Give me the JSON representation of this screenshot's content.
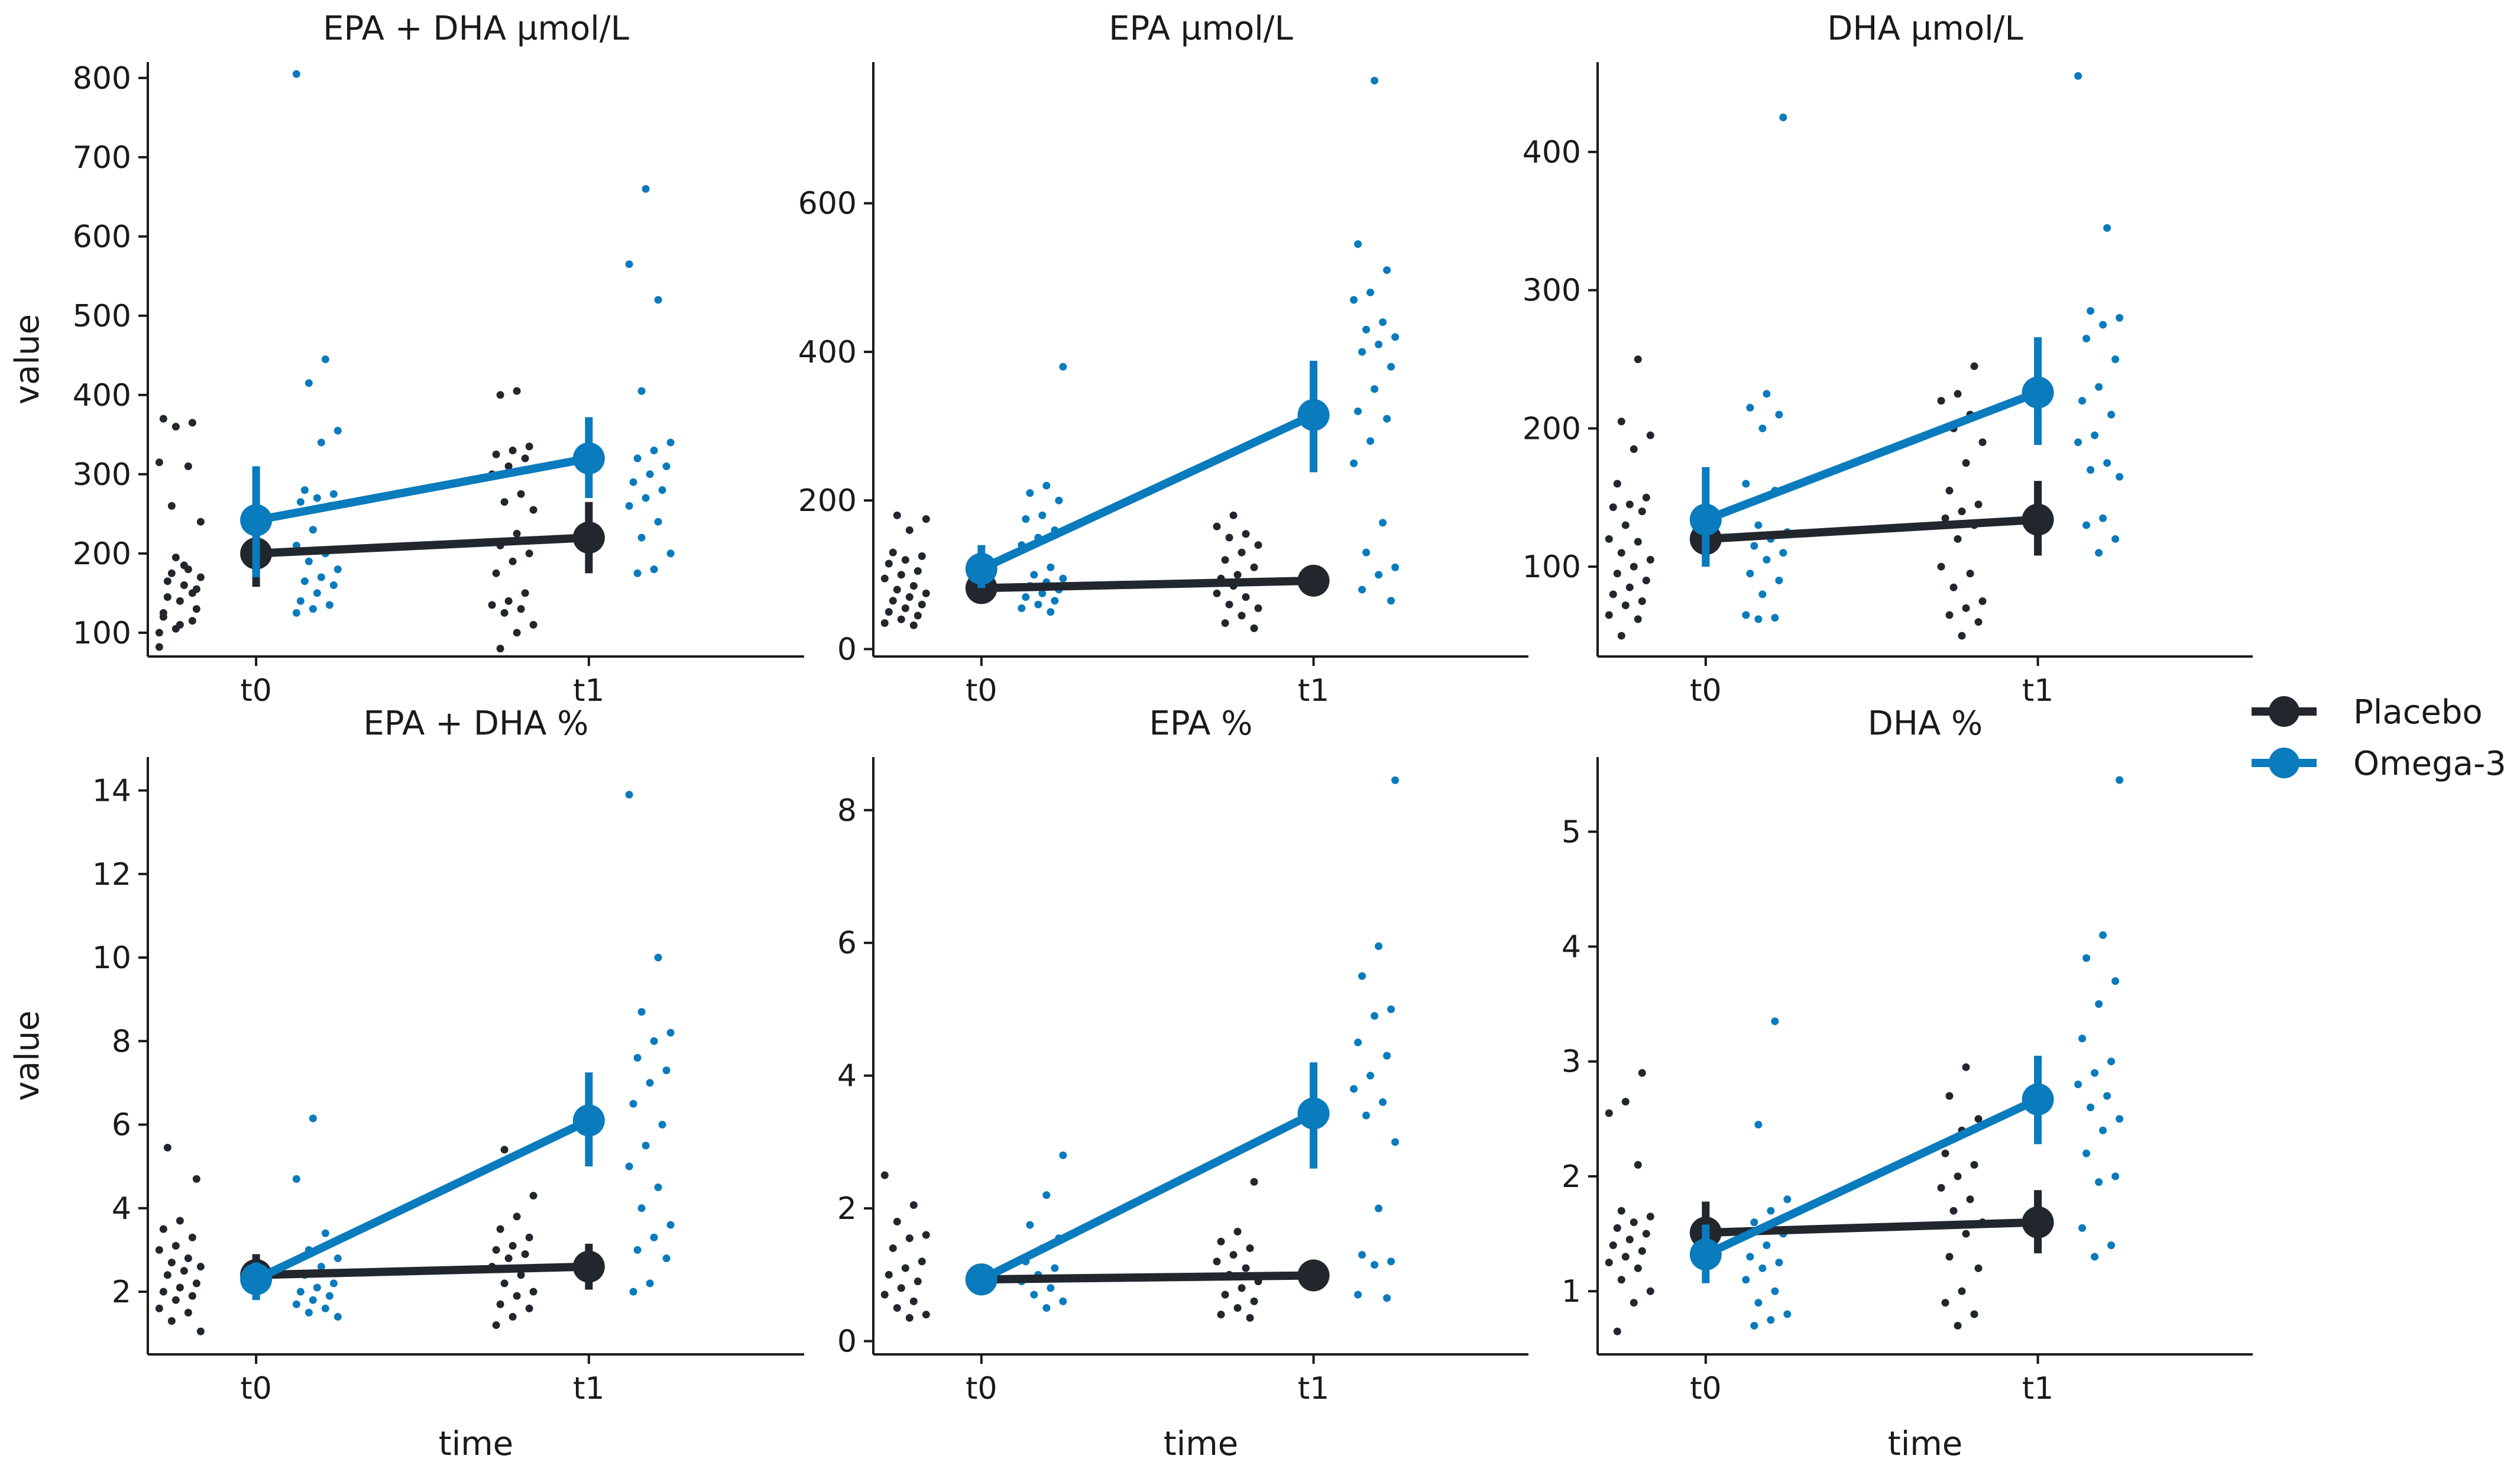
{
  "colors": {
    "placebo": "#22272e",
    "omega3": "#0a7bbd"
  },
  "legend": {
    "position": "right",
    "items": [
      {
        "label": "Placebo",
        "color": "#22272e"
      },
      {
        "label": "Omega-3",
        "color": "#0a7bbd"
      }
    ]
  },
  "chart_data": [
    {
      "type": "scatter",
      "title": "EPA + DHA µmol/L",
      "xlabel": "",
      "ylabel": "value",
      "categories": [
        "t0",
        "t1"
      ],
      "ylim": [
        70,
        820
      ],
      "yticks": [
        100,
        200,
        300,
        400,
        500,
        600,
        700,
        800
      ],
      "series": [
        {
          "name": "Placebo",
          "means": [
            200,
            220
          ],
          "ci": [
            [
              158,
              242
            ],
            [
              175,
              265
            ]
          ],
          "points": [
            [
              82,
              195,
              150,
              120,
              110,
              130,
              145,
              160,
              170,
              175,
              180,
              100,
              105,
              115,
              125,
              140,
              155,
              165,
              185,
              240,
              260,
              310,
              315,
              360,
              365,
              370
            ],
            [
              80,
              100,
              110,
              125,
              130,
              135,
              140,
              150,
              175,
              190,
              200,
              210,
              225,
              255,
              265,
              275,
              300,
              310,
              320,
              325,
              330,
              335,
              400,
              405
            ]
          ]
        },
        {
          "name": "Omega-3",
          "means": [
            242,
            320
          ],
          "ci": [
            [
              170,
              310
            ],
            [
              270,
              372
            ]
          ],
          "points": [
            [
              125,
              130,
              135,
              140,
              150,
              160,
              165,
              170,
              180,
              190,
              200,
              210,
              230,
              260,
              265,
              270,
              275,
              280,
              340,
              355,
              415,
              445,
              805
            ],
            [
              175,
              180,
              200,
              220,
              240,
              260,
              270,
              280,
              290,
              300,
              310,
              320,
              330,
              340,
              405,
              520,
              565,
              660
            ]
          ]
        }
      ]
    },
    {
      "type": "scatter",
      "title": "EPA µmol/L",
      "xlabel": "",
      "ylabel": "",
      "categories": [
        "t0",
        "t1"
      ],
      "ylim": [
        -10,
        790
      ],
      "yticks": [
        0,
        200,
        400,
        600
      ],
      "series": [
        {
          "name": "Placebo",
          "means": [
            82,
            92
          ],
          "ci": [
            [
              65,
              100
            ],
            [
              75,
              112
            ]
          ],
          "points": [
            [
              32,
              35,
              40,
              45,
              50,
              55,
              60,
              65,
              70,
              75,
              80,
              85,
              95,
              100,
              105,
              115,
              120,
              125,
              130,
              160,
              175,
              180
            ],
            [
              28,
              35,
              45,
              55,
              60,
              70,
              75,
              85,
              90,
              95,
              100,
              110,
              120,
              130,
              140,
              150,
              155,
              165,
              180
            ]
          ]
        },
        {
          "name": "Omega-3",
          "means": [
            108,
            315
          ],
          "ci": [
            [
              82,
              140
            ],
            [
              238,
              388
            ]
          ],
          "points": [
            [
              50,
              55,
              60,
              65,
              70,
              75,
              80,
              85,
              90,
              95,
              100,
              110,
              140,
              150,
              160,
              175,
              180,
              200,
              210,
              220,
              380
            ],
            [
              65,
              80,
              100,
              110,
              130,
              170,
              250,
              280,
              310,
              320,
              350,
              380,
              400,
              410,
              420,
              430,
              440,
              470,
              480,
              510,
              545,
              765
            ]
          ]
        }
      ]
    },
    {
      "type": "scatter",
      "title": "DHA µmol/L",
      "xlabel": "",
      "ylabel": "",
      "categories": [
        "t0",
        "t1"
      ],
      "ylim": [
        35,
        465
      ],
      "yticks": [
        100,
        200,
        300,
        400
      ],
      "series": [
        {
          "name": "Placebo",
          "means": [
            120,
            134
          ],
          "ci": [
            [
              100,
              140
            ],
            [
              108,
              162
            ]
          ],
          "points": [
            [
              50,
              62,
              65,
              72,
              75,
              80,
              85,
              90,
              95,
              100,
              105,
              110,
              118,
              120,
              130,
              140,
              143,
              145,
              150,
              160,
              185,
              195,
              205,
              250
            ],
            [
              50,
              60,
              65,
              70,
              75,
              85,
              95,
              100,
              120,
              130,
              135,
              140,
              145,
              155,
              175,
              190,
              200,
              210,
              220,
              225,
              245
            ]
          ]
        },
        {
          "name": "Omega-3",
          "means": [
            134,
            226
          ],
          "ci": [
            [
              100,
              172
            ],
            [
              188,
              266
            ]
          ],
          "points": [
            [
              62,
              63,
              65,
              80,
              90,
              95,
              105,
              110,
              115,
              120,
              125,
              130,
              155,
              160,
              200,
              210,
              215,
              225,
              425
            ],
            [
              110,
              120,
              130,
              135,
              165,
              170,
              175,
              190,
              195,
              210,
              220,
              230,
              250,
              265,
              275,
              280,
              285,
              345,
              455
            ]
          ]
        }
      ]
    },
    {
      "type": "scatter",
      "title": "EPA + DHA %",
      "xlabel": "time",
      "ylabel": "value",
      "categories": [
        "t0",
        "t1"
      ],
      "ylim": [
        0.5,
        14.8
      ],
      "yticks": [
        2,
        4,
        6,
        8,
        10,
        12,
        14
      ],
      "series": [
        {
          "name": "Placebo",
          "means": [
            2.4,
            2.6
          ],
          "ci": [
            [
              1.9,
              2.9
            ],
            [
              2.05,
              3.15
            ]
          ],
          "points": [
            [
              1.05,
              1.3,
              1.5,
              1.6,
              1.8,
              1.9,
              2.0,
              2.1,
              2.2,
              2.4,
              2.5,
              2.6,
              2.7,
              2.8,
              3.0,
              3.1,
              3.3,
              3.5,
              3.7,
              4.7,
              5.45
            ],
            [
              1.2,
              1.4,
              1.6,
              1.7,
              1.9,
              2.0,
              2.2,
              2.4,
              2.6,
              2.8,
              2.9,
              3.0,
              3.1,
              3.3,
              3.5,
              3.8,
              4.3,
              5.4
            ]
          ]
        },
        {
          "name": "Omega-3",
          "means": [
            2.3,
            6.1
          ],
          "ci": [
            [
              1.8,
              2.7
            ],
            [
              5.0,
              7.25
            ]
          ],
          "points": [
            [
              1.4,
              1.5,
              1.6,
              1.7,
              1.8,
              1.9,
              2.0,
              2.1,
              2.2,
              2.4,
              2.6,
              2.8,
              3.0,
              3.4,
              4.7,
              6.15
            ],
            [
              2.0,
              2.2,
              2.8,
              3.0,
              3.3,
              3.6,
              4.0,
              4.5,
              5.0,
              5.5,
              6.0,
              6.5,
              7.0,
              7.3,
              7.6,
              8.0,
              8.2,
              8.7,
              10.0,
              13.9
            ]
          ]
        }
      ]
    },
    {
      "type": "scatter",
      "title": "EPA %",
      "xlabel": "time",
      "ylabel": "",
      "categories": [
        "t0",
        "t1"
      ],
      "ylim": [
        -0.2,
        8.8
      ],
      "yticks": [
        0,
        2,
        4,
        6,
        8
      ],
      "series": [
        {
          "name": "Placebo",
          "means": [
            0.93,
            0.99
          ],
          "ci": [
            [
              0.75,
              1.1
            ],
            [
              0.8,
              1.2
            ]
          ],
          "points": [
            [
              0.35,
              0.4,
              0.5,
              0.6,
              0.7,
              0.8,
              0.9,
              1.0,
              1.1,
              1.2,
              1.4,
              1.55,
              1.6,
              1.8,
              2.05,
              2.5
            ],
            [
              0.35,
              0.4,
              0.5,
              0.6,
              0.7,
              0.8,
              0.9,
              1.0,
              1.1,
              1.2,
              1.3,
              1.4,
              1.5,
              1.65,
              2.4
            ]
          ]
        },
        {
          "name": "Omega-3",
          "means": [
            0.93,
            3.43
          ],
          "ci": [
            [
              0.75,
              1.15
            ],
            [
              2.6,
              4.2
            ]
          ],
          "points": [
            [
              0.5,
              0.6,
              0.7,
              0.8,
              0.9,
              1.0,
              1.1,
              1.2,
              1.4,
              1.55,
              1.75,
              2.2,
              2.8
            ],
            [
              0.65,
              0.7,
              1.15,
              1.2,
              1.3,
              2.0,
              3.0,
              3.4,
              3.6,
              3.8,
              4.0,
              4.3,
              4.5,
              4.9,
              5.0,
              5.5,
              5.95,
              8.45
            ]
          ]
        }
      ]
    },
    {
      "type": "scatter",
      "title": "DHA %",
      "xlabel": "time",
      "ylabel": "",
      "categories": [
        "t0",
        "t1"
      ],
      "ylim": [
        0.45,
        5.65
      ],
      "yticks": [
        1,
        2,
        3,
        4,
        5
      ],
      "series": [
        {
          "name": "Placebo",
          "means": [
            1.51,
            1.6
          ],
          "ci": [
            [
              1.22,
              1.78
            ],
            [
              1.33,
              1.88
            ]
          ],
          "points": [
            [
              0.65,
              0.9,
              1.0,
              1.1,
              1.2,
              1.25,
              1.3,
              1.35,
              1.4,
              1.45,
              1.5,
              1.55,
              1.6,
              1.65,
              1.7,
              2.1,
              2.55,
              2.65,
              2.9
            ],
            [
              0.7,
              0.8,
              0.9,
              1.0,
              1.2,
              1.3,
              1.5,
              1.6,
              1.7,
              1.8,
              1.9,
              2.0,
              2.1,
              2.2,
              2.4,
              2.5,
              2.7,
              2.95
            ]
          ]
        },
        {
          "name": "Omega-3",
          "means": [
            1.32,
            2.67
          ],
          "ci": [
            [
              1.07,
              1.58
            ],
            [
              2.28,
              3.05
            ]
          ],
          "points": [
            [
              0.7,
              0.75,
              0.8,
              0.9,
              1.0,
              1.1,
              1.2,
              1.25,
              1.3,
              1.4,
              1.5,
              1.6,
              1.7,
              1.8,
              2.45,
              3.35
            ],
            [
              1.3,
              1.4,
              1.55,
              1.95,
              2.0,
              2.2,
              2.4,
              2.5,
              2.6,
              2.7,
              2.8,
              2.9,
              3.0,
              3.2,
              3.5,
              3.7,
              3.9,
              4.1,
              5.45
            ]
          ]
        }
      ]
    }
  ]
}
